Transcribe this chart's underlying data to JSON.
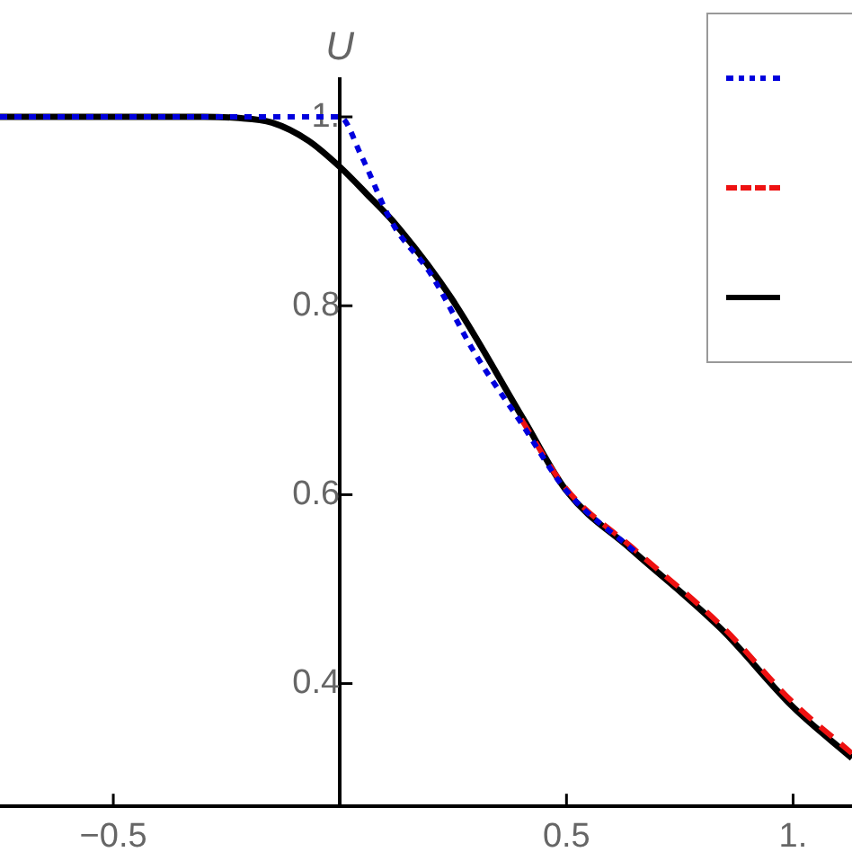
{
  "chart_data": {
    "type": "line",
    "ylabel": "U",
    "xlim": [
      -0.75,
      1.13
    ],
    "ylim": [
      0.27,
      1.04
    ],
    "xticks": [
      {
        "value": -0.5,
        "label": "−0.5"
      },
      0.5,
      {
        "value": 1,
        "label": "1."
      }
    ],
    "yticks": [
      0.4,
      0.6,
      0.8,
      {
        "value": 1,
        "label": "1."
      }
    ],
    "grid": false,
    "marker": "none",
    "series": [
      {
        "color": "#0000dd",
        "line_style": "dotted",
        "x": [
          -0.75,
          -0.3,
          0,
          0.048,
          0.115,
          0.2,
          0.3,
          0.4,
          0.5,
          0.65
        ],
        "values": [
          1,
          1,
          1,
          0.958,
          0.888,
          0.834,
          0.748,
          0.676,
          0.604,
          0.54
        ]
      },
      {
        "color": "#ee1111",
        "line_style": "dashed",
        "x": [
          0.4,
          0.5,
          0.65,
          0.84,
          1,
          1.13
        ],
        "values": [
          0.68,
          0.606,
          0.542,
          0.462,
          0.38,
          0.326
        ]
      },
      {
        "color": "#000000",
        "line_style": "solid",
        "x": [
          -0.75,
          -0.3,
          -0.23,
          -0.15,
          -0.07,
          0,
          0.06,
          0.127,
          0.246,
          0.405,
          0.5,
          0.643,
          0.841,
          1,
          1.13
        ],
        "values": [
          1,
          1,
          0.999,
          0.994,
          0.975,
          0.947,
          0.918,
          0.884,
          0.808,
          0.68,
          0.604,
          0.542,
          0.458,
          0.375,
          0.321
        ]
      }
    ]
  }
}
